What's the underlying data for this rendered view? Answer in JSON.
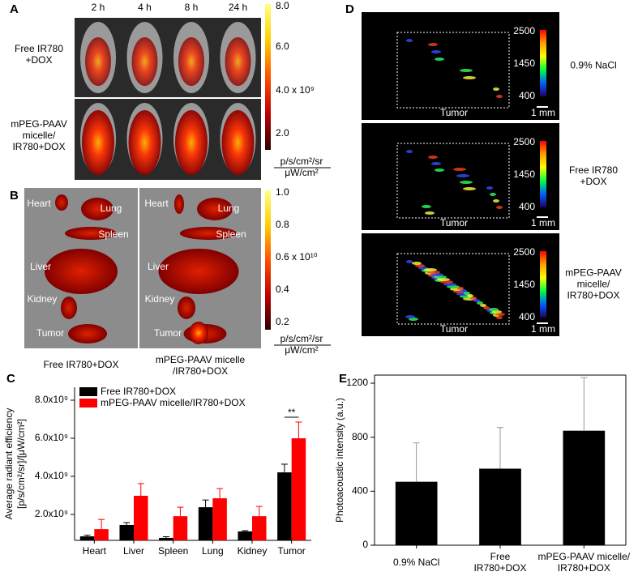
{
  "figure": {
    "panel_a": {
      "label": "A",
      "times": [
        "2 h",
        "4 h",
        "8 h",
        "24 h"
      ],
      "rows": [
        "Free IR780\n+DOX",
        "mPEG-PAAV\nmicelle/\nIR780+DOX"
      ],
      "scale": [
        "8.0",
        "6.0",
        "4.0 x 10⁹",
        "2.0"
      ],
      "unit": [
        "p/s/cm²/sr",
        "μW/cm²"
      ]
    },
    "panel_b": {
      "label": "B",
      "organs": [
        "Heart",
        "Lung",
        "Spleen",
        "Liver",
        "Kidney",
        "Tumor"
      ],
      "captions": [
        "Free IR780+DOX",
        "mPEG-PAAV micelle\n/IR780+DOX"
      ],
      "scale": [
        "1.0",
        "0.8",
        "0.6 x 10¹⁰",
        "0.4",
        "0.2"
      ],
      "unit": [
        "p/s/cm²/sr",
        "μW/cm²"
      ]
    },
    "panel_d": {
      "label": "D",
      "rows": [
        "0.9% NaCl",
        "Free IR780\n+DOX",
        "mPEG-PAAV\nmicelle/\nIR780+DOX"
      ],
      "scale": [
        "2500",
        "1450",
        "400"
      ],
      "roi": "Tumor",
      "scalebar": "1 mm"
    }
  },
  "chart_data": [
    {
      "type": "bar",
      "label": "C",
      "y_label": [
        "Average radiant efficiency",
        "[p/s/cm²/sr]/[μW/cm²]"
      ],
      "categories": [
        "Heart",
        "Liver",
        "Spleen",
        "Lung",
        "Kidney",
        "Tumor"
      ],
      "series": [
        {
          "name": "Free IR780+DOX",
          "color": "#000000",
          "values": [
            850000000,
            1450000000,
            770000000,
            2380000000,
            1110000000,
            4210000000
          ],
          "errors": [
            60000000,
            120000000,
            60000000,
            380000000,
            40000000,
            430000000
          ]
        },
        {
          "name": "mPEG-PAAV micelle/IR780+DOX",
          "color": "#ff0000",
          "values": [
            1230000000,
            2980000000,
            1910000000,
            2850000000,
            1910000000,
            6000000000
          ],
          "errors": [
            510000000,
            640000000,
            470000000,
            510000000,
            510000000,
            850000000
          ]
        }
      ],
      "ylim": [
        640000000,
        8680000000
      ],
      "yticks": [
        {
          "value": 2000000000,
          "label": "2.0x10⁹"
        },
        {
          "value": 4000000000,
          "label": "4.0x10⁹"
        },
        {
          "value": 6000000000,
          "label": "6.0x10⁹"
        },
        {
          "value": 8000000000,
          "label": "8.0x10⁹"
        }
      ],
      "annotation": "**"
    },
    {
      "type": "bar",
      "label": "E",
      "y_label": "Photoacoustic intensity (a.u.)",
      "categories": [
        "0.9% NaCl",
        "Free\nIR780+DOX",
        "mPEG-PAAV micelle/\nIR780+DOX"
      ],
      "series": [
        {
          "name": null,
          "color": "#000000",
          "values": [
            470,
            567,
            848
          ],
          "errors": [
            288,
            305,
            394
          ]
        }
      ],
      "ylim": [
        0,
        1260
      ],
      "yticks": [
        0,
        400,
        800,
        1200
      ]
    }
  ]
}
